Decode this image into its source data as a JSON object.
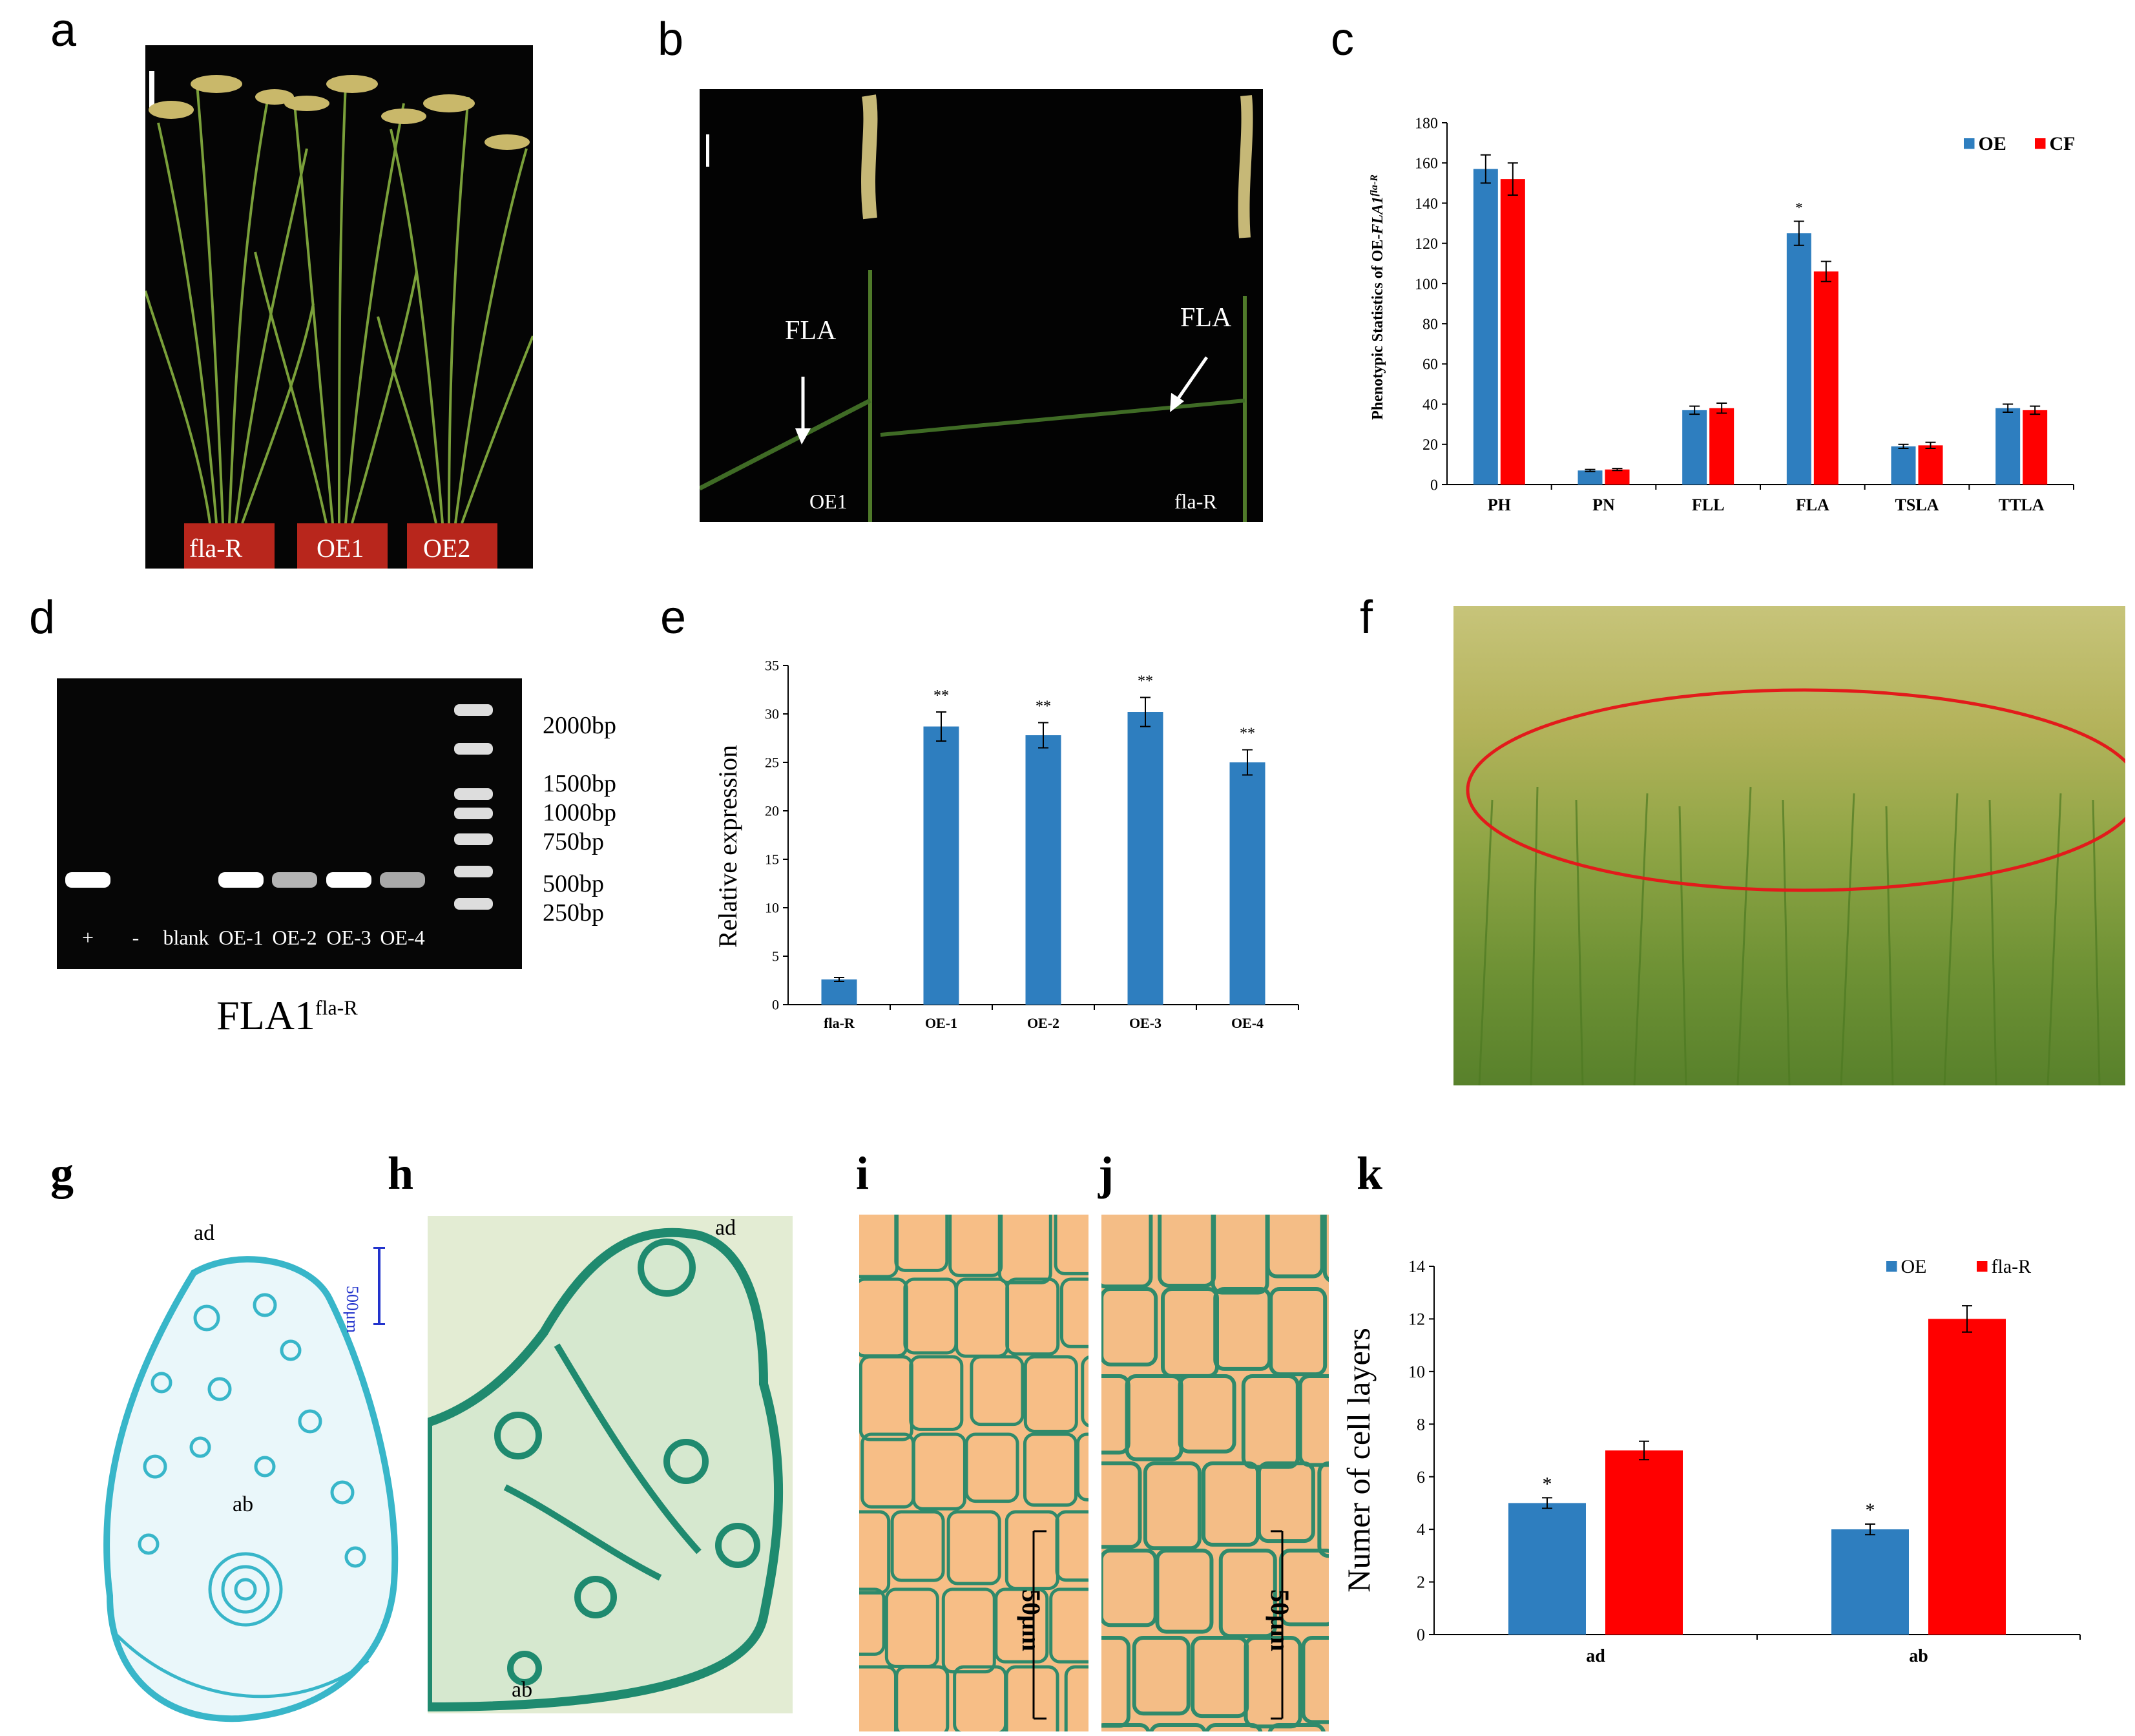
{
  "panel_labels": [
    "a",
    "b",
    "c",
    "d",
    "e",
    "f",
    "g",
    "h",
    "i",
    "j",
    "k"
  ],
  "panel_a": {
    "pot_labels": [
      "fla-R",
      "OE1",
      "OE2"
    ]
  },
  "panel_b": {
    "annotation_left": "FLA",
    "annotation_right": "FLA",
    "label_left": "OE1",
    "label_right": "fla-R"
  },
  "panel_d": {
    "ladder": [
      "2000bp",
      "1500bp",
      "1000bp",
      "750bp",
      "500bp",
      "250bp"
    ],
    "lanes": [
      "+",
      "-",
      "blank",
      "OE-1",
      "OE-2",
      "OE-3",
      "OE-4"
    ],
    "caption_main": "FLA1",
    "caption_sup": "fla-R"
  },
  "panel_g": {
    "label_ad": "ad",
    "label_ab": "ab",
    "scale": "500μm"
  },
  "panel_h": {
    "label_ad": "ad",
    "label_ab": "ab"
  },
  "panel_i": {
    "scale": "50μm"
  },
  "panel_j": {
    "scale": "50μm"
  },
  "colors": {
    "blue": "#2e7ebf",
    "red": "#ff0000"
  },
  "chart_data": [
    {
      "panel": "c",
      "type": "bar",
      "ylabel_pre": "Phenotypic Statistics of OE-",
      "ylabel_gene": "FLA1",
      "ylabel_sup": "fla-R",
      "categories": [
        "PH",
        "PN",
        "FLL",
        "FLA",
        "TSLA",
        "TTLA"
      ],
      "ylim": [
        0,
        180
      ],
      "yticks": [
        0,
        20,
        40,
        60,
        80,
        100,
        120,
        140,
        160,
        180
      ],
      "legend_position": "top-right",
      "series": [
        {
          "name": "OE",
          "color": "#2e7ebf",
          "values": [
            157,
            7,
            37,
            125,
            19,
            38
          ],
          "errors": [
            7,
            0.5,
            2,
            6,
            1,
            2
          ]
        },
        {
          "name": "CF",
          "color": "#ff0000",
          "values": [
            152,
            7.5,
            38,
            106,
            19.5,
            37
          ],
          "errors": [
            8,
            0.5,
            2.5,
            5,
            1.5,
            2
          ]
        }
      ],
      "annotations": [
        {
          "category": "FLA",
          "text": "*"
        }
      ]
    },
    {
      "panel": "e",
      "type": "bar",
      "ylabel": "Relative expression",
      "categories": [
        "fla-R",
        "OE-1",
        "OE-2",
        "OE-3",
        "OE-4"
      ],
      "ylim": [
        0,
        35
      ],
      "yticks": [
        0,
        5,
        10,
        15,
        20,
        25,
        30,
        35
      ],
      "series": [
        {
          "color": "#2e7ebf",
          "values": [
            2.6,
            28.7,
            27.8,
            30.2,
            25.0
          ],
          "errors": [
            0.2,
            1.5,
            1.3,
            1.5,
            1.3
          ]
        }
      ],
      "annotations": [
        "",
        "**",
        "**",
        "**",
        "**"
      ]
    },
    {
      "panel": "k",
      "type": "bar",
      "ylabel": "Numer of cell layers",
      "categories": [
        "ad",
        "ab"
      ],
      "ylim": [
        0,
        14
      ],
      "yticks": [
        0,
        2,
        4,
        6,
        8,
        10,
        12,
        14
      ],
      "legend_position": "top-right",
      "series": [
        {
          "name": "OE",
          "color": "#2e7ebf",
          "values": [
            5.0,
            4.0
          ],
          "errors": [
            0.2,
            0.2
          ]
        },
        {
          "name": "fla-R",
          "color": "#ff0000",
          "values": [
            7.0,
            12.0
          ],
          "errors": [
            0.35,
            0.5
          ]
        }
      ],
      "annotations": [
        {
          "category": "ad",
          "text": "*"
        },
        {
          "category": "ab",
          "text": "*"
        }
      ]
    }
  ]
}
